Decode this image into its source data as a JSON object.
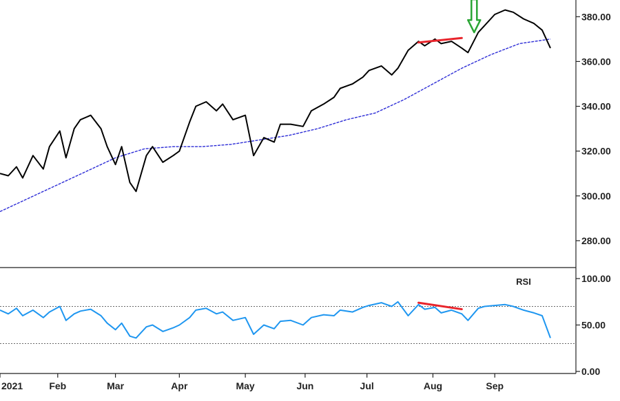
{
  "colors": {
    "price": "#000000",
    "moving_average": "#2b2bd6",
    "rsi": "#1e96f0",
    "trendline": "#e8242b",
    "signal_arrow": "#2aa534",
    "axis": "#222222",
    "reference_line": "#666666"
  },
  "chart_data": [
    {
      "type": "line",
      "panel": "price",
      "title": "",
      "xlabel": "",
      "ylabel": "",
      "ylim": [
        268,
        385
      ],
      "xlim": [
        "2021-01-04",
        "2021-09-30"
      ],
      "y_ticks": [
        "380.00",
        "360.00",
        "340.00",
        "320.00",
        "300.00",
        "280.00"
      ],
      "x_ticks": [
        {
          "label": "2021",
          "date": "2021-01-04"
        },
        {
          "label": "Feb",
          "date": "2021-02-01"
        },
        {
          "label": "Mar",
          "date": "2021-03-01"
        },
        {
          "label": "Apr",
          "date": "2021-04-01"
        },
        {
          "label": "May",
          "date": "2021-05-03"
        },
        {
          "label": "Jun",
          "date": "2021-06-01"
        },
        {
          "label": "Jul",
          "date": "2021-07-01"
        },
        {
          "label": "Aug",
          "date": "2021-08-02"
        },
        {
          "label": "Sep",
          "date": "2021-09-01"
        }
      ],
      "grid": false,
      "y_axis_side": "right",
      "series": [
        {
          "key": "price",
          "x": [
            "2021-01-04",
            "2021-01-08",
            "2021-01-12",
            "2021-01-15",
            "2021-01-20",
            "2021-01-25",
            "2021-01-28",
            "2021-02-02",
            "2021-02-05",
            "2021-02-09",
            "2021-02-12",
            "2021-02-17",
            "2021-02-22",
            "2021-02-25",
            "2021-03-01",
            "2021-03-04",
            "2021-03-08",
            "2021-03-11",
            "2021-03-16",
            "2021-03-19",
            "2021-03-24",
            "2021-03-29",
            "2021-04-01",
            "2021-04-06",
            "2021-04-09",
            "2021-04-14",
            "2021-04-19",
            "2021-04-22",
            "2021-04-27",
            "2021-05-03",
            "2021-05-07",
            "2021-05-12",
            "2021-05-17",
            "2021-05-20",
            "2021-05-25",
            "2021-05-31",
            "2021-06-04",
            "2021-06-10",
            "2021-06-15",
            "2021-06-18",
            "2021-06-24",
            "2021-06-29",
            "2021-07-02",
            "2021-07-08",
            "2021-07-13",
            "2021-07-16",
            "2021-07-21",
            "2021-07-26",
            "2021-07-29",
            "2021-08-03",
            "2021-08-06",
            "2021-08-11",
            "2021-08-16",
            "2021-08-19",
            "2021-08-24",
            "2021-08-27",
            "2021-09-01",
            "2021-09-06",
            "2021-09-10",
            "2021-09-15",
            "2021-09-20",
            "2021-09-24",
            "2021-09-28"
          ],
          "values": [
            310,
            309,
            313,
            308,
            318,
            312,
            322,
            329,
            317,
            330,
            334,
            336,
            330,
            322,
            314,
            322,
            306,
            302,
            318,
            322,
            315,
            318,
            320,
            333,
            340,
            342,
            338,
            341,
            334,
            336,
            318,
            326,
            324,
            332,
            332,
            331,
            338,
            341,
            344,
            348,
            350,
            353,
            356,
            358,
            354,
            357,
            365,
            369,
            367,
            370,
            368,
            369,
            366,
            364,
            373,
            376,
            381,
            383,
            382,
            379,
            377,
            374,
            366
          ]
        },
        {
          "key": "moving_average",
          "x": [
            "2021-01-04",
            "2021-01-25",
            "2021-02-15",
            "2021-03-01",
            "2021-03-15",
            "2021-03-29",
            "2021-04-12",
            "2021-04-26",
            "2021-05-10",
            "2021-05-24",
            "2021-06-07",
            "2021-06-21",
            "2021-07-05",
            "2021-07-19",
            "2021-08-02",
            "2021-08-16",
            "2021-08-30",
            "2021-09-13",
            "2021-09-28"
          ],
          "values": [
            293,
            302,
            311,
            317,
            321,
            322,
            322,
            323,
            325,
            327,
            330,
            334,
            337,
            343,
            350,
            357,
            363,
            368,
            370
          ]
        }
      ],
      "annotations": [
        {
          "kind": "trendline",
          "x": [
            "2021-07-26",
            "2021-08-16"
          ],
          "y": [
            368.5,
            370.5
          ]
        },
        {
          "kind": "arrow-down",
          "x": "2021-08-22",
          "y": 373
        }
      ]
    },
    {
      "type": "line",
      "panel": "rsi",
      "title": "RSI",
      "xlabel": "",
      "ylabel": "",
      "ylim": [
        0,
        100
      ],
      "y_ticks": [
        "100.00",
        "50.00",
        "0.00"
      ],
      "reference_lines": [
        70,
        30
      ],
      "grid": false,
      "series": [
        {
          "key": "rsi",
          "x": [
            "2021-01-04",
            "2021-01-08",
            "2021-01-12",
            "2021-01-15",
            "2021-01-20",
            "2021-01-25",
            "2021-01-28",
            "2021-02-02",
            "2021-02-05",
            "2021-02-09",
            "2021-02-12",
            "2021-02-17",
            "2021-02-22",
            "2021-02-25",
            "2021-03-01",
            "2021-03-04",
            "2021-03-08",
            "2021-03-11",
            "2021-03-16",
            "2021-03-19",
            "2021-03-24",
            "2021-03-29",
            "2021-04-01",
            "2021-04-06",
            "2021-04-09",
            "2021-04-14",
            "2021-04-19",
            "2021-04-22",
            "2021-04-27",
            "2021-05-03",
            "2021-05-07",
            "2021-05-12",
            "2021-05-17",
            "2021-05-20",
            "2021-05-25",
            "2021-05-31",
            "2021-06-04",
            "2021-06-10",
            "2021-06-15",
            "2021-06-18",
            "2021-06-24",
            "2021-06-29",
            "2021-07-02",
            "2021-07-08",
            "2021-07-13",
            "2021-07-16",
            "2021-07-21",
            "2021-07-26",
            "2021-07-29",
            "2021-08-03",
            "2021-08-06",
            "2021-08-11",
            "2021-08-16",
            "2021-08-19",
            "2021-08-24",
            "2021-08-27",
            "2021-09-01",
            "2021-09-06",
            "2021-09-10",
            "2021-09-15",
            "2021-09-20",
            "2021-09-24",
            "2021-09-28"
          ],
          "values": [
            66,
            62,
            68,
            60,
            66,
            58,
            64,
            70,
            55,
            62,
            65,
            67,
            60,
            52,
            45,
            52,
            38,
            36,
            48,
            50,
            43,
            47,
            50,
            58,
            66,
            68,
            62,
            64,
            55,
            58,
            40,
            50,
            46,
            54,
            55,
            50,
            58,
            61,
            60,
            66,
            64,
            69,
            71,
            74,
            70,
            75,
            60,
            72,
            67,
            69,
            63,
            66,
            62,
            55,
            68,
            70,
            71,
            72,
            70,
            66,
            63,
            60,
            36
          ]
        }
      ],
      "annotations": [
        {
          "kind": "trendline",
          "x": [
            "2021-07-26",
            "2021-08-16"
          ],
          "y": [
            74,
            67
          ]
        }
      ]
    }
  ]
}
